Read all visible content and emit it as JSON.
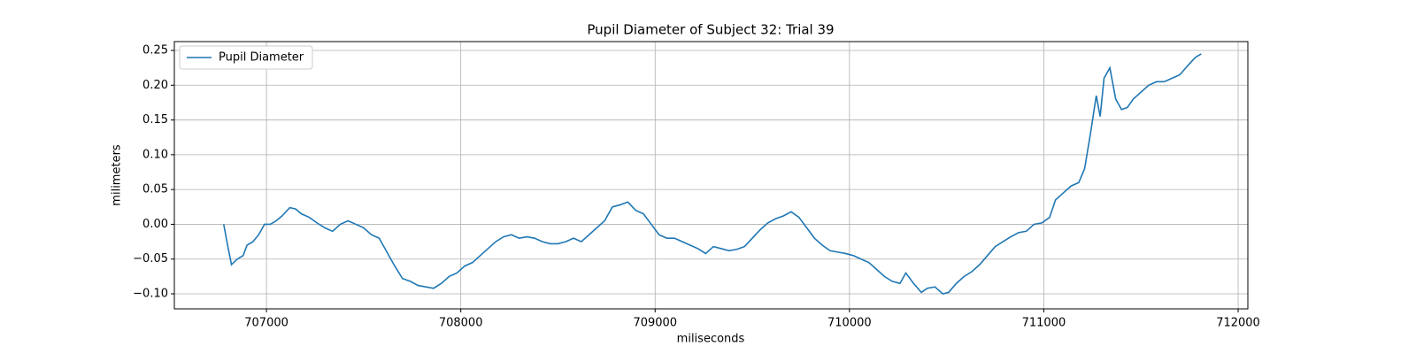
{
  "chart_data": {
    "type": "line",
    "title": "Pupil Diameter of Subject 32: Trial 39",
    "x_label": "miliseconds",
    "y_label": "milimeters",
    "x": [
      706780,
      706800,
      706820,
      706850,
      706880,
      706900,
      706930,
      706960,
      706990,
      707020,
      707050,
      707080,
      707120,
      707150,
      707180,
      707220,
      707260,
      707300,
      707340,
      707380,
      707420,
      707460,
      707500,
      707540,
      707580,
      707620,
      707660,
      707700,
      707740,
      707780,
      707820,
      707860,
      707900,
      707940,
      707980,
      708020,
      708060,
      708100,
      708140,
      708180,
      708220,
      708260,
      708300,
      708340,
      708380,
      708420,
      708460,
      708500,
      708540,
      708580,
      708620,
      708660,
      708700,
      708740,
      708780,
      708820,
      708860,
      708900,
      708940,
      708980,
      709020,
      709060,
      709100,
      709140,
      709180,
      709220,
      709260,
      709300,
      709340,
      709380,
      709420,
      709460,
      709500,
      709540,
      709580,
      709620,
      709660,
      709700,
      709740,
      709780,
      709820,
      709860,
      709900,
      709940,
      709980,
      710020,
      710060,
      710100,
      710140,
      710180,
      710220,
      710260,
      710290,
      710330,
      710370,
      710400,
      710440,
      710480,
      710510,
      710550,
      710590,
      710630,
      710670,
      710710,
      710750,
      710790,
      710830,
      710870,
      710910,
      710950,
      710990,
      711030,
      711060,
      711100,
      711140,
      711180,
      711210,
      711240,
      711270,
      711290,
      711310,
      711340,
      711370,
      711400,
      711430,
      711460,
      711500,
      711540,
      711580,
      711620,
      711660,
      711700,
      711740,
      711780,
      711810
    ],
    "series": [
      {
        "name": "Pupil Diameter",
        "color": "#1f77b4",
        "values": [
          0.0,
          -0.03,
          -0.058,
          -0.05,
          -0.045,
          -0.03,
          -0.025,
          -0.015,
          0.0,
          0.0,
          0.005,
          0.012,
          0.024,
          0.022,
          0.015,
          0.01,
          0.002,
          -0.005,
          -0.01,
          0.0,
          0.005,
          0.0,
          -0.005,
          -0.015,
          -0.02,
          -0.04,
          -0.06,
          -0.078,
          -0.082,
          -0.088,
          -0.09,
          -0.092,
          -0.085,
          -0.075,
          -0.07,
          -0.06,
          -0.055,
          -0.045,
          -0.035,
          -0.025,
          -0.018,
          -0.015,
          -0.02,
          -0.018,
          -0.02,
          -0.025,
          -0.028,
          -0.028,
          -0.025,
          -0.02,
          -0.025,
          -0.015,
          -0.005,
          0.005,
          0.025,
          0.028,
          0.032,
          0.02,
          0.015,
          0.0,
          -0.015,
          -0.02,
          -0.02,
          -0.025,
          -0.03,
          -0.035,
          -0.042,
          -0.032,
          -0.035,
          -0.038,
          -0.036,
          -0.032,
          -0.02,
          -0.008,
          0.002,
          0.008,
          0.012,
          0.018,
          0.01,
          -0.005,
          -0.02,
          -0.03,
          -0.038,
          -0.04,
          -0.042,
          -0.045,
          -0.05,
          -0.055,
          -0.065,
          -0.075,
          -0.082,
          -0.085,
          -0.07,
          -0.085,
          -0.098,
          -0.092,
          -0.09,
          -0.1,
          -0.098,
          -0.085,
          -0.075,
          -0.068,
          -0.058,
          -0.045,
          -0.032,
          -0.025,
          -0.018,
          -0.012,
          -0.01,
          0.0,
          0.002,
          0.01,
          0.035,
          0.045,
          0.055,
          0.06,
          0.08,
          0.13,
          0.185,
          0.155,
          0.21,
          0.225,
          0.18,
          0.165,
          0.168,
          0.18,
          0.19,
          0.2,
          0.205,
          0.205,
          0.21,
          0.215,
          0.228,
          0.24,
          0.245
        ]
      }
    ],
    "xlim": [
      706526,
      712050
    ],
    "ylim": [
      -0.1216,
      0.2627
    ],
    "xticks": [
      707000,
      708000,
      709000,
      710000,
      711000,
      712000
    ],
    "yticks": [
      {
        "value": -0.1,
        "label": "−0.10"
      },
      {
        "value": -0.05,
        "label": "−0.05"
      },
      {
        "value": 0,
        "label": "0.00"
      },
      {
        "value": 0.05,
        "label": "0.05"
      },
      {
        "value": 0.1,
        "label": "0.10"
      },
      {
        "value": 0.15,
        "label": "0.15"
      },
      {
        "value": 0.2,
        "label": "0.20"
      },
      {
        "value": 0.25,
        "label": "0.25"
      }
    ],
    "grid": true,
    "legend": "upper left"
  }
}
